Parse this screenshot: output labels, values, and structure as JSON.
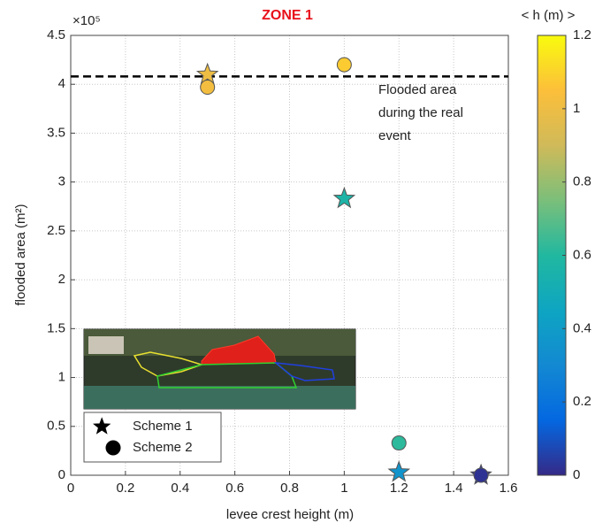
{
  "chart_data": {
    "type": "scatter",
    "title": "ZONE 1",
    "xlabel": "levee crest height (m)",
    "ylabel": "flooded area (m²)",
    "y_exponent_label": "×10⁵",
    "xlim": [
      0,
      1.6
    ],
    "xticks": [
      0,
      0.2,
      0.4,
      0.6,
      0.8,
      1,
      1.2,
      1.4,
      1.6
    ],
    "ylim": [
      0,
      4.5
    ],
    "yticks": [
      0,
      0.5,
      1,
      1.5,
      2,
      2.5,
      3,
      3.5,
      4,
      4.5
    ],
    "grid": true,
    "reference_line": {
      "value": 4.08,
      "label": [
        "Flooded area",
        "during the real",
        "event"
      ]
    },
    "colorbar": {
      "label": "< h (m) >",
      "clim": [
        0,
        1.2
      ],
      "ticks": [
        0,
        0.2,
        0.4,
        0.6,
        0.8,
        1,
        1.2
      ]
    },
    "legend_position": "lower left",
    "series": [
      {
        "name": "Scheme 1",
        "marker": "star",
        "x": [
          0.5,
          1,
          1.2,
          1.5
        ],
        "values": [
          4.1,
          2.83,
          0.03,
          0
        ],
        "h": [
          1.0,
          0.57,
          0.36,
          0.02
        ]
      },
      {
        "name": "Scheme 2",
        "marker": "circle",
        "x": [
          0.5,
          1,
          1.2,
          1.5
        ],
        "values": [
          3.97,
          4.2,
          0.33,
          0
        ],
        "h": [
          1.02,
          1.08,
          0.62,
          0.02
        ]
      }
    ]
  }
}
